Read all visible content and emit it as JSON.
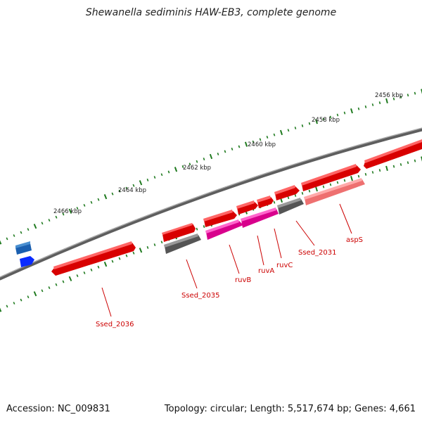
{
  "title": "Shewanella sediminis HAW-EB3, complete genome",
  "footer": {
    "accession": "Accession: NC_009831",
    "summary": "Topology: circular; Length: 5,517,674 bp; Genes: 4,661"
  },
  "scale_labels": [
    "2456 kbp",
    "2458 kbp",
    "2460 kbp",
    "2462 kbp",
    "2464 kbp",
    "2466 kbp"
  ],
  "gene_labels": [
    "aspS",
    "Ssed_2031",
    "ruvC",
    "ruvA",
    "ruvB",
    "Ssed_2035",
    "Ssed_2036"
  ],
  "colors": {
    "gene_red": "#ee1111",
    "gene_gray": "#666666",
    "gene_magenta": "#ee22aa",
    "gene_pink": "#f08080",
    "gene_blue": "#0a2bff",
    "gene_steelblue": "#4a7fb8",
    "backbone": "#777777",
    "tick": "#1f7a1f",
    "label": "#cc0000"
  }
}
